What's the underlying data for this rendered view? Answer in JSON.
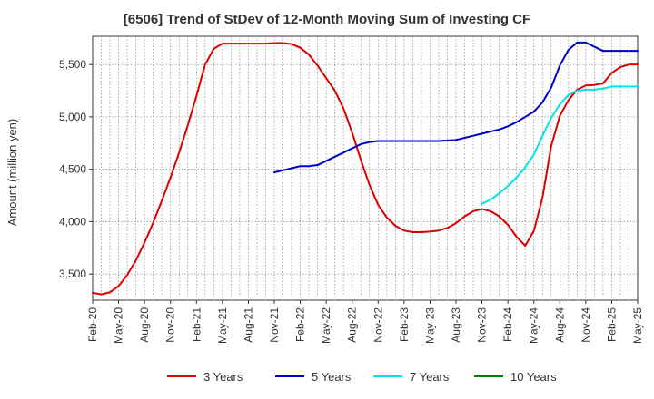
{
  "chart_data": {
    "type": "line",
    "title": "[6506]  Trend of StDev of 12-Month Moving Sum of Investing CF",
    "xlabel": "",
    "ylabel": "Amount (million yen)",
    "ylim": [
      3250,
      5770
    ],
    "yticks": [
      3500,
      4000,
      4500,
      5000,
      5500
    ],
    "ytick_labels": [
      "3,500",
      "4,000",
      "4,500",
      "5,000",
      "5,500"
    ],
    "x_tick_labels": [
      "Feb-20",
      "May-20",
      "Aug-20",
      "Nov-20",
      "Feb-21",
      "May-21",
      "Aug-21",
      "Nov-21",
      "Feb-22",
      "May-22",
      "Aug-22",
      "Nov-22",
      "Feb-23",
      "May-23",
      "Aug-23",
      "Nov-23",
      "Feb-24",
      "May-24",
      "Aug-24",
      "Nov-24",
      "Feb-25",
      "May-25"
    ],
    "x_months": [
      "2020-02",
      "2020-03",
      "2020-04",
      "2020-05",
      "2020-06",
      "2020-07",
      "2020-08",
      "2020-09",
      "2020-10",
      "2020-11",
      "2020-12",
      "2021-01",
      "2021-02",
      "2021-03",
      "2021-04",
      "2021-05",
      "2021-06",
      "2021-07",
      "2021-08",
      "2021-09",
      "2021-10",
      "2021-11",
      "2021-12",
      "2022-01",
      "2022-02",
      "2022-03",
      "2022-04",
      "2022-05",
      "2022-06",
      "2022-07",
      "2022-08",
      "2022-09",
      "2022-10",
      "2022-11",
      "2022-12",
      "2023-01",
      "2023-02",
      "2023-03",
      "2023-04",
      "2023-05",
      "2023-06",
      "2023-07",
      "2023-08",
      "2023-09",
      "2023-10",
      "2023-11",
      "2023-12",
      "2024-01",
      "2024-02",
      "2024-03",
      "2024-04",
      "2024-05",
      "2024-06",
      "2024-07",
      "2024-08",
      "2024-09",
      "2024-10",
      "2024-11",
      "2024-12",
      "2025-01",
      "2025-02",
      "2025-03",
      "2025-04",
      "2025-05"
    ],
    "grid": true,
    "legend_position": "bottom",
    "series": [
      {
        "name": "3 Years",
        "color": "#dd0000",
        "values": [
          3320,
          3305,
          3325,
          3385,
          3490,
          3630,
          3800,
          3990,
          4200,
          4420,
          4660,
          4920,
          5200,
          5500,
          5650,
          5700,
          5700,
          5700,
          5700,
          5700,
          5700,
          5705,
          5705,
          5695,
          5660,
          5595,
          5490,
          5370,
          5250,
          5080,
          4850,
          4590,
          4350,
          4160,
          4040,
          3960,
          3915,
          3900,
          3900,
          3905,
          3915,
          3940,
          3985,
          4050,
          4100,
          4120,
          4100,
          4050,
          3970,
          3855,
          3770,
          3910,
          4230,
          4720,
          5010,
          5160,
          5260,
          5300,
          5305,
          5320,
          5420,
          5475,
          5500,
          5500
        ],
        "start_index": 0
      },
      {
        "name": "5 Years",
        "color": "#0000cc",
        "values": [
          4470,
          4490,
          4510,
          4530,
          4530,
          4540,
          4580,
          4620,
          4660,
          4700,
          4740,
          4760,
          4770,
          4770,
          4770,
          4770,
          4770,
          4770,
          4770,
          4770,
          4775,
          4780,
          4800,
          4820,
          4840,
          4860,
          4880,
          4910,
          4950,
          5000,
          5050,
          5140,
          5280,
          5490,
          5640,
          5710,
          5710,
          5670,
          5630,
          5630,
          5630,
          5630,
          5630
        ],
        "start_index": 21
      },
      {
        "name": "7 Years",
        "color": "#00e5e5",
        "values": [
          4170,
          4210,
          4270,
          4340,
          4420,
          4520,
          4640,
          4820,
          4990,
          5120,
          5210,
          5250,
          5260,
          5260,
          5270,
          5290,
          5290,
          5290,
          5290
        ],
        "start_index": 45
      },
      {
        "name": "10 Years",
        "color": "#008000",
        "values": [],
        "start_index": 0
      }
    ]
  }
}
